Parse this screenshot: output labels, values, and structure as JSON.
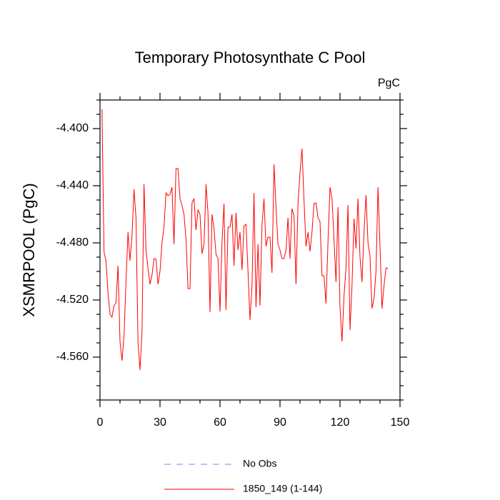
{
  "chart_data": {
    "type": "line",
    "title": "Temporary Photosynthate C Pool",
    "units_label": "PgC",
    "y_label": "XSMRPOOL  (PgC)",
    "xlim": [
      0,
      150
    ],
    "xticks": [
      0,
      30,
      60,
      90,
      120,
      150
    ],
    "xminorticks": [
      10,
      20,
      40,
      50,
      70,
      80,
      100,
      110,
      130,
      140
    ],
    "ylim": [
      -4.59,
      -4.38
    ],
    "yticks": [
      {
        "value": -4.4,
        "label": "-4.400"
      },
      {
        "value": -4.44,
        "label": "-4.440"
      },
      {
        "value": -4.48,
        "label": "-4.480"
      },
      {
        "value": -4.52,
        "label": "-4.520"
      },
      {
        "value": -4.56,
        "label": "-4.560"
      }
    ],
    "yminorticks": [
      -4.59,
      -4.58,
      -4.57,
      -4.55,
      -4.54,
      -4.53,
      -4.51,
      -4.5,
      -4.49,
      -4.47,
      -4.46,
      -4.45,
      -4.43,
      -4.42,
      -4.41,
      -4.39,
      -4.38
    ],
    "obs": {
      "name": "No Obs",
      "color": "#8080ff",
      "style": "dashed"
    },
    "x": [
      1,
      2,
      3,
      4,
      5,
      6,
      7,
      8,
      9,
      10,
      11,
      12,
      13,
      14,
      15,
      16,
      17,
      18,
      19,
      20,
      21,
      22,
      23,
      24,
      25,
      26,
      27,
      28,
      29,
      30,
      31,
      32,
      33,
      34,
      35,
      36,
      37,
      38,
      39,
      40,
      41,
      42,
      43,
      44,
      45,
      46,
      47,
      48,
      49,
      50,
      51,
      52,
      53,
      54,
      55,
      56,
      57,
      58,
      59,
      60,
      61,
      62,
      63,
      64,
      65,
      66,
      67,
      68,
      69,
      70,
      71,
      72,
      73,
      74,
      75,
      76,
      77,
      78,
      79,
      80,
      81,
      82,
      83,
      84,
      85,
      86,
      87,
      88,
      89,
      90,
      91,
      92,
      93,
      94,
      95,
      96,
      97,
      98,
      99,
      100,
      101,
      102,
      103,
      104,
      105,
      106,
      107,
      108,
      109,
      110,
      111,
      112,
      113,
      114,
      115,
      116,
      117,
      118,
      119,
      120,
      121,
      122,
      123,
      124,
      125,
      126,
      127,
      128,
      129,
      130,
      131,
      132,
      133,
      134,
      135,
      136,
      137,
      138,
      139,
      140,
      141,
      142,
      143,
      144
    ],
    "series": [
      {
        "name": "1850_149 (1-144)",
        "color": "#ff0000",
        "values": [
          -4.3865,
          -4.486,
          -4.493,
          -4.515,
          -4.53,
          -4.532,
          -4.524,
          -4.522,
          -4.496,
          -4.549,
          -4.5625,
          -4.545,
          -4.5075,
          -4.4725,
          -4.4925,
          -4.475,
          -4.4425,
          -4.4625,
          -4.55,
          -4.569,
          -4.5425,
          -4.439,
          -4.485,
          -4.4975,
          -4.509,
          -4.5025,
          -4.491,
          -4.4915,
          -4.509,
          -4.5,
          -4.48,
          -4.469,
          -4.445,
          -4.447,
          -4.446,
          -4.441,
          -4.481,
          -4.428,
          -4.428,
          -4.449,
          -4.454,
          -4.46,
          -4.4775,
          -4.512,
          -4.512,
          -4.452,
          -4.449,
          -4.471,
          -4.457,
          -4.46,
          -4.4875,
          -4.481,
          -4.439,
          -4.459,
          -4.5285,
          -4.46,
          -4.47,
          -4.488,
          -4.491,
          -4.528,
          -4.48,
          -4.4525,
          -4.527,
          -4.469,
          -4.469,
          -4.46,
          -4.496,
          -4.459,
          -4.485,
          -4.4725,
          -4.499,
          -4.468,
          -4.467,
          -4.5,
          -4.534,
          -4.51,
          -4.445,
          -4.525,
          -4.481,
          -4.524,
          -4.468,
          -4.449,
          -4.4825,
          -4.476,
          -4.476,
          -4.501,
          -4.425,
          -4.455,
          -4.481,
          -4.485,
          -4.491,
          -4.491,
          -4.485,
          -4.4625,
          -4.491,
          -4.456,
          -4.461,
          -4.509,
          -4.4525,
          -4.431,
          -4.414,
          -4.45,
          -4.4825,
          -4.4725,
          -4.486,
          -4.4725,
          -4.4525,
          -4.452,
          -4.4625,
          -4.465,
          -4.503,
          -4.503,
          -4.5225,
          -4.479,
          -4.441,
          -4.449,
          -4.4775,
          -4.5075,
          -4.455,
          -4.525,
          -4.549,
          -4.5175,
          -4.4975,
          -4.4535,
          -4.541,
          -4.51,
          -4.463,
          -4.484,
          -4.449,
          -4.49,
          -4.5075,
          -4.4725,
          -4.4465,
          -4.48,
          -4.489,
          -4.526,
          -4.519,
          -4.5,
          -4.441,
          -4.4825,
          -4.526,
          -4.51,
          -4.4975,
          -4.498
        ]
      }
    ]
  }
}
